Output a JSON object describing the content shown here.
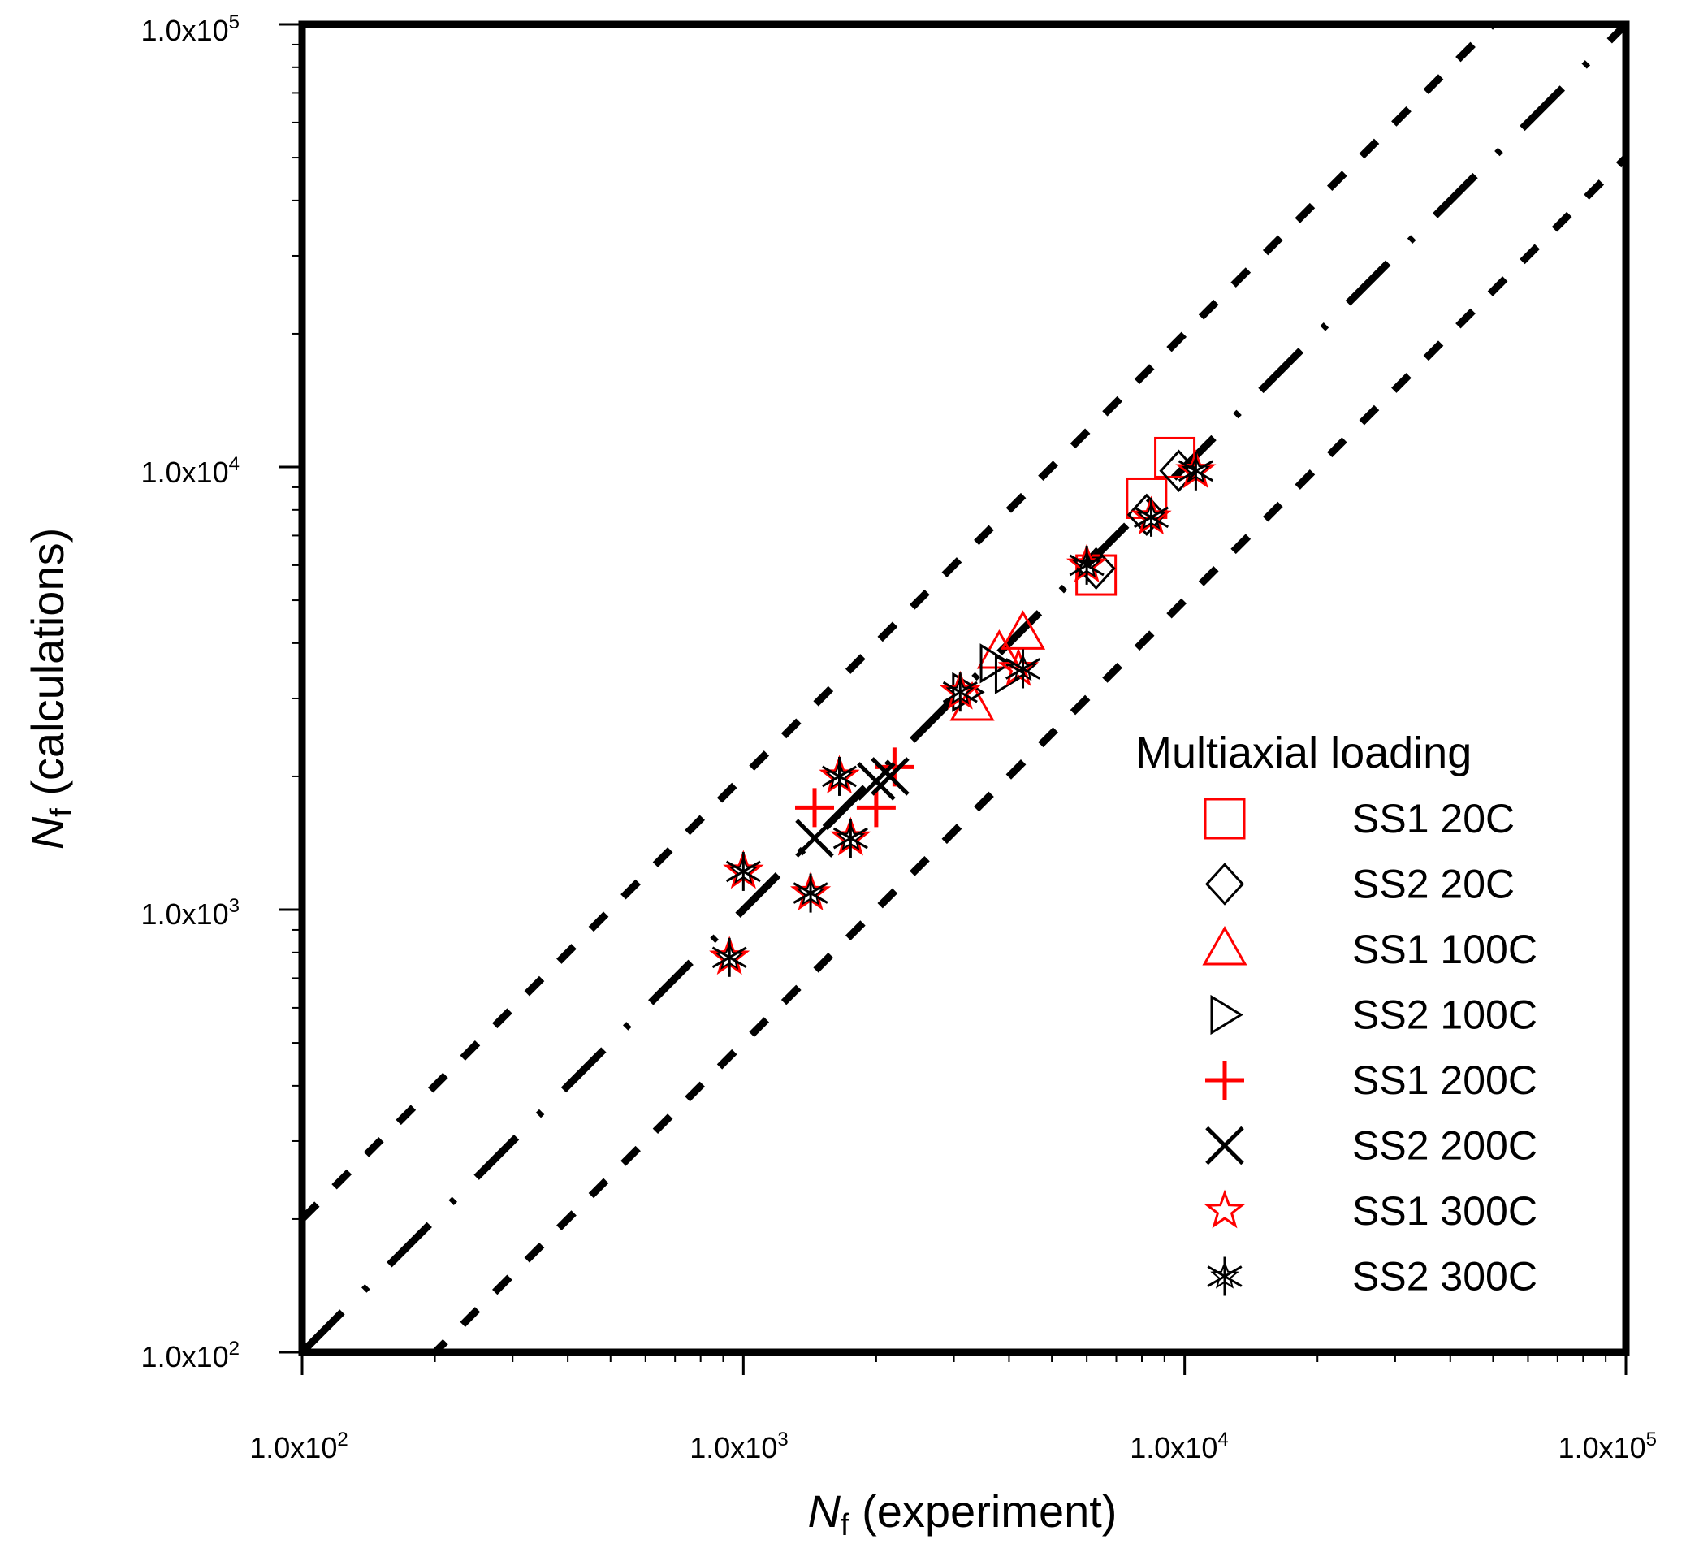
{
  "chart_data": {
    "type": "scatter",
    "x_scale": "log",
    "y_scale": "log",
    "xlim": [
      100,
      100000
    ],
    "ylim": [
      100,
      100000
    ],
    "x_ticks": [
      {
        "value": 100,
        "mantissa": "1.0x10",
        "exponent": "2"
      },
      {
        "value": 1000,
        "mantissa": "1.0x10",
        "exponent": "3"
      },
      {
        "value": 10000,
        "mantissa": "1.0x10",
        "exponent": "4"
      },
      {
        "value": 100000,
        "mantissa": "1.0x10",
        "exponent": "5"
      }
    ],
    "y_ticks": [
      {
        "value": 100,
        "mantissa": "1.0x10",
        "exponent": "2"
      },
      {
        "value": 1000,
        "mantissa": "1.0x10",
        "exponent": "3"
      },
      {
        "value": 10000,
        "mantissa": "1.0x10",
        "exponent": "4"
      },
      {
        "value": 100000,
        "mantissa": "1.0x10",
        "exponent": "5"
      }
    ],
    "xlabel": {
      "symbol": "N",
      "subscript": "f",
      "text": " (experiment)"
    },
    "ylabel": {
      "symbol": "N",
      "subscript": "f",
      "text": " (calculations)"
    },
    "reference_lines": [
      {
        "name": "factor-2-upper",
        "factor": 2,
        "style": "dashed"
      },
      {
        "name": "one-to-one",
        "factor": 1,
        "style": "dash-dot"
      },
      {
        "name": "factor-2-lower",
        "factor": 0.5,
        "style": "dashed"
      }
    ],
    "legend": {
      "title": "Multiaxial loading",
      "position": "center-right"
    },
    "series": [
      {
        "name": "SS1 20C",
        "marker": "square",
        "color": "#ff0000",
        "points": [
          [
            6300,
            5700
          ],
          [
            8200,
            8500
          ],
          [
            9500,
            10500
          ]
        ]
      },
      {
        "name": "SS2 20C",
        "marker": "diamond",
        "color": "#000000",
        "points": [
          [
            6300,
            5900
          ],
          [
            8200,
            7800
          ],
          [
            9700,
            9800
          ]
        ]
      },
      {
        "name": "SS1 100C",
        "marker": "triangle-up",
        "color": "#ff0000",
        "points": [
          [
            3300,
            2900
          ],
          [
            3800,
            3800
          ],
          [
            4300,
            4200
          ]
        ]
      },
      {
        "name": "SS2 100C",
        "marker": "triangle-right",
        "color": "#000000",
        "points": [
          [
            3200,
            3100
          ],
          [
            3700,
            3600
          ],
          [
            4000,
            3400
          ]
        ]
      },
      {
        "name": "SS1 200C",
        "marker": "plus",
        "color": "#ff0000",
        "points": [
          [
            1450,
            1700
          ],
          [
            2000,
            1700
          ],
          [
            2200,
            2100
          ]
        ]
      },
      {
        "name": "SS2 200C",
        "marker": "cross",
        "color": "#000000",
        "points": [
          [
            1450,
            1450
          ],
          [
            2000,
            1950
          ],
          [
            2150,
            2000
          ]
        ]
      },
      {
        "name": "SS1 300C",
        "marker": "star",
        "color": "#ff0000",
        "points": [
          [
            930,
            780
          ],
          [
            1000,
            1220
          ],
          [
            1420,
            1090
          ],
          [
            1650,
            2000
          ],
          [
            1750,
            1450
          ],
          [
            3100,
            3100
          ],
          [
            4200,
            3500
          ],
          [
            6000,
            6000
          ],
          [
            8400,
            7700
          ],
          [
            10600,
            9800
          ]
        ]
      },
      {
        "name": "SS2 300C",
        "marker": "star6",
        "color": "#000000",
        "points": [
          [
            930,
            780
          ],
          [
            1000,
            1220
          ],
          [
            1420,
            1090
          ],
          [
            1650,
            2000
          ],
          [
            1750,
            1450
          ],
          [
            3100,
            3100
          ],
          [
            4300,
            3500
          ],
          [
            6000,
            6000
          ],
          [
            8400,
            7700
          ],
          [
            10600,
            9800
          ]
        ]
      }
    ]
  }
}
